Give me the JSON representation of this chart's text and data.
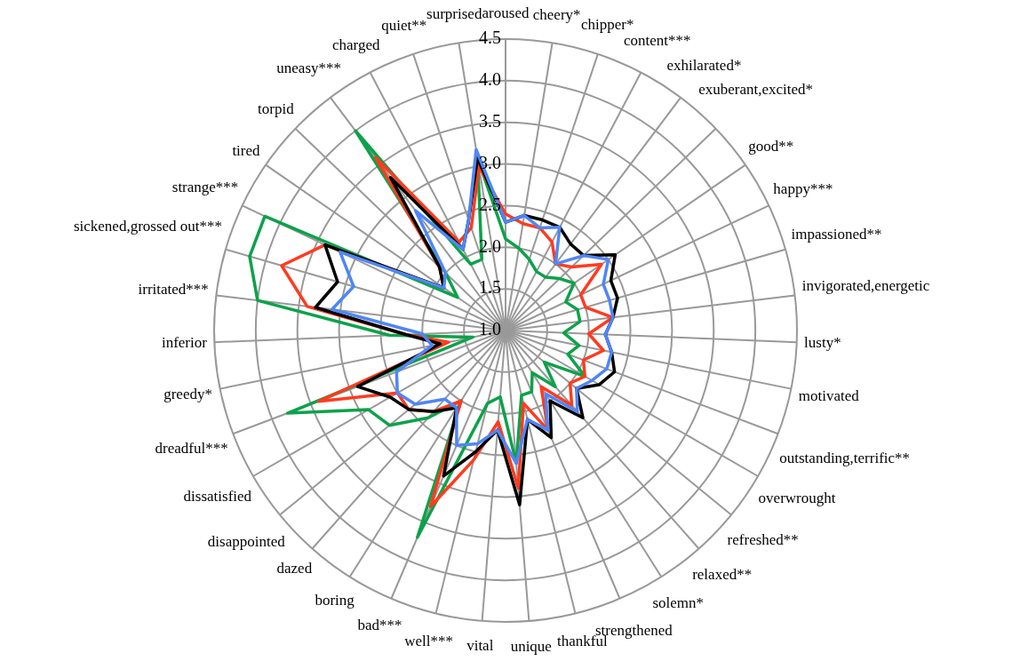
{
  "chart_data": {
    "type": "radar",
    "categories": [
      "aroused",
      "cheery*",
      "chipper*",
      "content***",
      "exhilarated*",
      "exuberant,excited*",
      "good**",
      "happy***",
      "impassioned**",
      "invigorated,energetic",
      "lusty*",
      "motivated",
      "outstanding,terrific**",
      "overwrought",
      "refreshed**",
      "relaxed**",
      "solemn*",
      "strengthened",
      "thankful",
      "unique",
      "vital",
      "well***",
      "bad***",
      "boring",
      "dazed",
      "disappointed",
      "dissatisfied",
      "dreadful***",
      "greedy*",
      "inferior",
      "irritated***",
      "sickened,grossed out***",
      "strange***",
      "tired",
      "torpid",
      "uneasy***",
      "charged",
      "quiet**",
      "surprised"
    ],
    "series": [
      {
        "color": "#4f86f7",
        "values": [
          2.3,
          2.4,
          2.3,
          2.4,
          2.0,
          2.3,
          2.5,
          2.3,
          2.3,
          2.3,
          2.2,
          2.3,
          2.3,
          2.2,
          2.1,
          2.3,
          1.9,
          2.3,
          2.1,
          2.6,
          2.2,
          2.4,
          2.5,
          2.1,
          2.1,
          2.4,
          2.5,
          2.4,
          1.9,
          2.0,
          3.1,
          2.9,
          3.2,
          1.9,
          2.0,
          2.8,
          2.1,
          2.4,
          3.2
        ]
      },
      {
        "color": "#000000",
        "values": [
          2.3,
          2.4,
          2.4,
          2.4,
          2.3,
          2.3,
          2.6,
          2.4,
          2.4,
          2.3,
          2.2,
          2.3,
          2.4,
          2.3,
          2.1,
          2.4,
          2.0,
          2.4,
          2.1,
          3.1,
          2.2,
          2.5,
          2.9,
          2.1,
          2.3,
          2.5,
          2.6,
          2.9,
          1.8,
          2.2,
          3.3,
          3.1,
          3.4,
          1.9,
          2.1,
          3.3,
          2.1,
          2.4,
          3.1
        ]
      },
      {
        "color": "#ff3b1f",
        "values": [
          2.4,
          2.3,
          2.3,
          2.2,
          2.0,
          2.1,
          2.4,
          2.0,
          2.0,
          2.3,
          2.0,
          2.2,
          2.0,
          2.1,
          2.0,
          2.2,
          1.8,
          2.3,
          1.9,
          2.9,
          2.1,
          2.6,
          3.3,
          2.0,
          2.3,
          2.5,
          2.5,
          3.4,
          1.7,
          2.2,
          3.4,
          3.8,
          3.4,
          1.9,
          2.1,
          3.6,
          2.2,
          2.3,
          3.0
        ]
      },
      {
        "color": "#0ca24a",
        "values": [
          2.1,
          2.0,
          1.9,
          1.8,
          1.8,
          1.9,
          2.0,
          1.8,
          1.9,
          1.9,
          1.7,
          1.9,
          1.8,
          2.1,
          1.6,
          1.9,
          1.6,
          1.8,
          1.8,
          2.6,
          1.8,
          1.9,
          3.7,
          2.0,
          2.4,
          2.8,
          2.9,
          3.8,
          1.4,
          2.4,
          4.0,
          4.2,
          4.2,
          1.7,
          2.0,
          4.0,
          1.9,
          1.9,
          3.1
        ]
      }
    ],
    "ylim": [
      1,
      4.5
    ],
    "yticks": [
      {
        "value": 1,
        "label": "1.0"
      },
      1.5,
      {
        "value": 2,
        "label": "2.0"
      },
      2.5,
      {
        "value": 3,
        "label": "3.0"
      },
      3.5,
      {
        "value": 4,
        "label": "4.0"
      },
      4.5
    ],
    "grid": true,
    "legend": false,
    "marker": "none",
    "line_style": "solid"
  }
}
